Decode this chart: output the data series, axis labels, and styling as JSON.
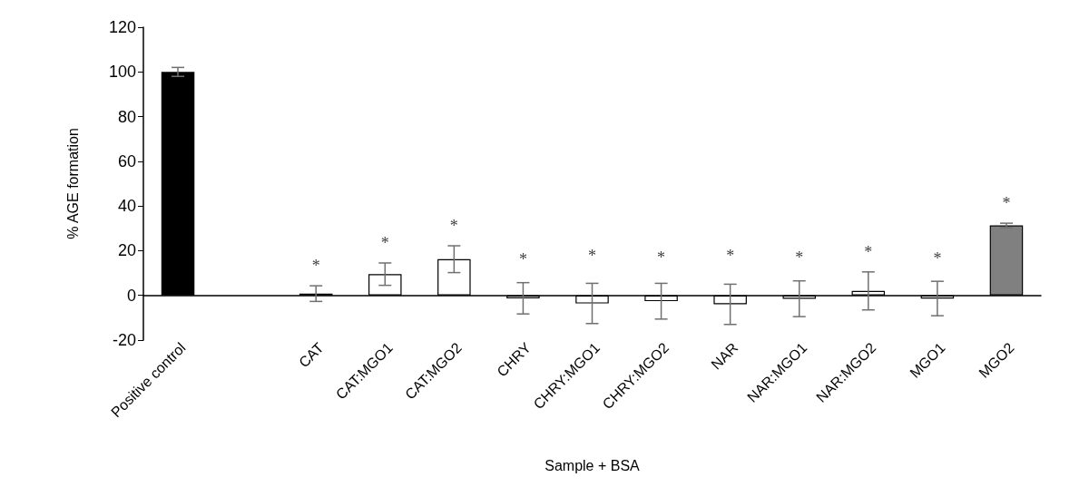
{
  "chart_data": {
    "type": "bar",
    "xlabel": "Sample + BSA",
    "ylabel": "% AGE formation",
    "categories": [
      "Positive control",
      null,
      "CAT",
      "CAT:MGO1",
      "CAT:MGO2",
      "CHRY",
      "CHRY:MGO1",
      "CHRY:MGO2",
      "NAR",
      "NAR:MGO1",
      "NAR:MGO2",
      "MGO1",
      "MGO2"
    ],
    "values": [
      100,
      null,
      0.8,
      9.5,
      16.2,
      -1.3,
      -3.6,
      -2.6,
      -4.0,
      -1.5,
      2.0,
      -1.4,
      31.3
    ],
    "colors": [
      "#000000",
      null,
      "#ffffff",
      "#ffffff",
      "#ffffff",
      "#ffffff",
      "#ffffff",
      "#ffffff",
      "#ffffff",
      "#ffffff",
      "#ffffff",
      "#ffffff",
      "#808080"
    ],
    "errors": [
      2,
      null,
      3.5,
      5,
      6,
      7,
      9,
      8,
      9,
      8,
      8.5,
      7.7,
      1
    ],
    "ylim": [
      -20,
      120
    ],
    "yticks": [
      -20,
      0,
      20,
      40,
      60,
      80,
      100,
      120
    ],
    "annotations": [
      {
        "text": "*",
        "x": "CAT",
        "y": 0.8
      },
      {
        "text": "*",
        "x": "CAT:MGO1",
        "y": 9.5
      },
      {
        "text": "*",
        "x": "CAT:MGO2",
        "y": 16.2
      },
      {
        "text": "*",
        "x": "CHRY",
        "y": -1.3
      },
      {
        "text": "*",
        "x": "CHRY:MGO1",
        "y": -3.6
      },
      {
        "text": "*",
        "x": "CHRY:MGO2",
        "y": -2.6
      },
      {
        "text": "*",
        "x": "NAR",
        "y": -4.0
      },
      {
        "text": "*",
        "x": "NAR:MGO1",
        "y": -1.5
      },
      {
        "text": "*",
        "x": "NAR:MGO2",
        "y": 2.0
      },
      {
        "text": "*",
        "x": "MGO1",
        "y": -1.4
      },
      {
        "text": "*",
        "x": "MGO2",
        "y": 31.3
      }
    ]
  }
}
